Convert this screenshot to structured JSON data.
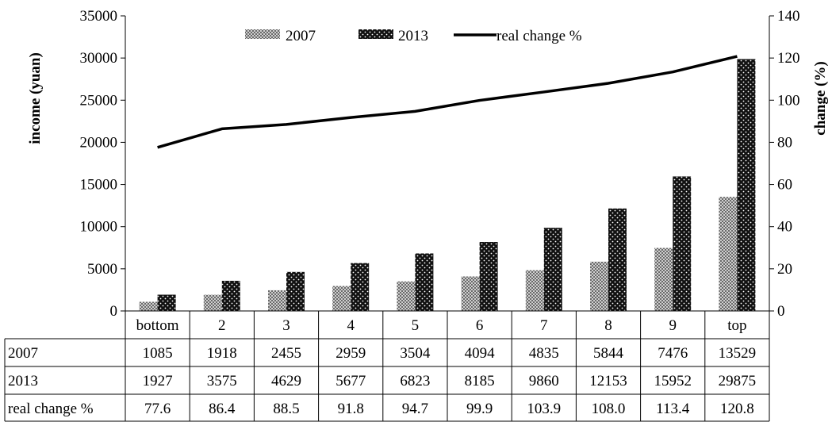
{
  "chart_data": {
    "type": "bar",
    "categories": [
      "bottom",
      "2",
      "3",
      "4",
      "5",
      "6",
      "7",
      "8",
      "9",
      "top"
    ],
    "series": [
      {
        "name": "2007",
        "values": [
          1085,
          1918,
          2455,
          2959,
          3504,
          4094,
          4835,
          5844,
          7476,
          13529
        ],
        "axis": "left",
        "kind": "bar"
      },
      {
        "name": "2013",
        "values": [
          1927,
          3575,
          4629,
          5677,
          6823,
          8185,
          9860,
          12153,
          15952,
          29875
        ],
        "axis": "left",
        "kind": "bar"
      },
      {
        "name": "real change %",
        "values": [
          77.6,
          86.4,
          88.5,
          91.8,
          94.7,
          99.9,
          103.9,
          108.0,
          113.4,
          120.8
        ],
        "axis": "right",
        "kind": "line"
      }
    ],
    "table_values": {
      "2007": [
        "1085",
        "1918",
        "2455",
        "2959",
        "3504",
        "4094",
        "4835",
        "5844",
        "7476",
        "13529"
      ],
      "2013": [
        "1927",
        "3575",
        "4629",
        "5677",
        "6823",
        "8185",
        "9860",
        "12153",
        "15952",
        "29875"
      ],
      "real change %": [
        "77.6",
        "86.4",
        "88.5",
        "91.8",
        "94.7",
        "99.9",
        "103.9",
        "108.0",
        "113.4",
        "120.8"
      ]
    },
    "ylabel": "income (yuan)",
    "y2label": "change (%)",
    "ylim": [
      0,
      35000
    ],
    "y2lim": [
      0,
      140
    ],
    "yticks": [
      "0",
      "5000",
      "10000",
      "15000",
      "20000",
      "25000",
      "30000",
      "35000"
    ],
    "y2ticks": [
      "0",
      "20",
      "40",
      "60",
      "80",
      "100",
      "120",
      "140"
    ],
    "legend_position": "top",
    "grid": false,
    "data_table": true
  },
  "colors": {
    "bar_2007": "#9a9a9a",
    "bar_2013": "#111111",
    "line": "#000000"
  }
}
